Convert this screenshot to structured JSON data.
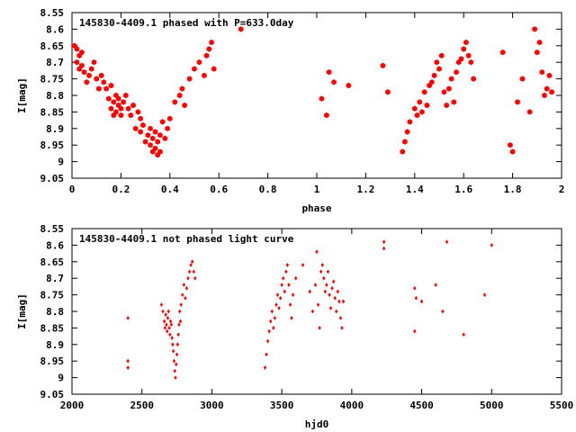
{
  "chart_data": [
    {
      "type": "scatter",
      "title": "145830-4409.1 phased with P=633.0day",
      "xlabel": "phase",
      "ylabel": "I[mag]",
      "xlim": [
        0,
        2
      ],
      "ylim": [
        9.05,
        8.55
      ],
      "y_inverted": true,
      "xticks": [
        "0",
        "0.2",
        "0.4",
        "0.6",
        "0.8",
        "1",
        "1.2",
        "1.4",
        "1.6",
        "1.8",
        "2"
      ],
      "yticks": [
        "8.55",
        "8.6",
        "8.65",
        "8.7",
        "8.75",
        "8.8",
        "8.85",
        "8.9",
        "8.95",
        "9",
        "9.05"
      ],
      "grid": false,
      "marker_color": "#ff0000",
      "marker": "filled hexagon",
      "series": [
        {
          "x": [
            0.01,
            0.02,
            0.02,
            0.03,
            0.03,
            0.04,
            0.04,
            0.05,
            0.06,
            0.07,
            0.08,
            0.09,
            0.1,
            0.11,
            0.12,
            0.13,
            0.14,
            0.15,
            0.16,
            0.16,
            0.17,
            0.17,
            0.18,
            0.18,
            0.19,
            0.19,
            0.2,
            0.2,
            0.21,
            0.22,
            0.23,
            0.24,
            0.25,
            0.26,
            0.27,
            0.28,
            0.28,
            0.29,
            0.3,
            0.31,
            0.32,
            0.32,
            0.33,
            0.33,
            0.34,
            0.34,
            0.35,
            0.35,
            0.36,
            0.36,
            0.37,
            0.38,
            0.39,
            0.4,
            0.42,
            0.44,
            0.45,
            0.46,
            0.48,
            0.5,
            0.52,
            0.54,
            0.55,
            0.56,
            0.57,
            0.58,
            0.69,
            1.02,
            1.04,
            1.05,
            1.07,
            1.13,
            1.27,
            1.29,
            1.35,
            1.36,
            1.37,
            1.38,
            1.4,
            1.41,
            1.42,
            1.43,
            1.44,
            1.45,
            1.46,
            1.47,
            1.48,
            1.49,
            1.5,
            1.51,
            1.52,
            1.53,
            1.54,
            1.55,
            1.56,
            1.57,
            1.58,
            1.59,
            1.6,
            1.61,
            1.62,
            1.63,
            1.64,
            1.76,
            1.79,
            1.8,
            1.82,
            1.84,
            1.87,
            1.89,
            1.9,
            1.91,
            1.92,
            1.93,
            1.94,
            1.95,
            1.96
          ],
          "y": [
            8.65,
            8.7,
            8.66,
            8.68,
            8.72,
            8.67,
            8.71,
            8.73,
            8.76,
            8.74,
            8.72,
            8.7,
            8.75,
            8.78,
            8.74,
            8.76,
            8.78,
            8.81,
            8.84,
            8.77,
            8.82,
            8.86,
            8.8,
            8.85,
            8.83,
            8.81,
            8.86,
            8.84,
            8.82,
            8.8,
            8.84,
            8.86,
            8.83,
            8.9,
            8.85,
            8.87,
            8.91,
            8.89,
            8.94,
            8.92,
            8.95,
            8.9,
            8.97,
            8.93,
            8.96,
            8.91,
            8.98,
            8.94,
            8.97,
            8.92,
            8.88,
            8.93,
            8.9,
            8.87,
            8.82,
            8.8,
            8.78,
            8.83,
            8.75,
            8.72,
            8.7,
            8.74,
            8.68,
            8.66,
            8.64,
            8.72,
            8.6,
            8.81,
            8.86,
            8.73,
            8.76,
            8.77,
            8.71,
            8.79,
            8.97,
            8.94,
            8.91,
            8.88,
            8.84,
            8.86,
            8.82,
            8.85,
            8.79,
            8.83,
            8.77,
            8.76,
            8.74,
            8.7,
            8.72,
            8.68,
            8.79,
            8.83,
            8.78,
            8.75,
            8.82,
            8.73,
            8.7,
            8.69,
            8.66,
            8.64,
            8.68,
            8.7,
            8.75,
            8.67,
            8.95,
            8.97,
            8.82,
            8.75,
            8.85,
            8.6,
            8.67,
            8.64,
            8.73,
            8.8,
            8.78,
            8.74,
            8.79
          ],
          "note": "data point estimates"
        }
      ]
    },
    {
      "type": "scatter",
      "title": "145830-4409.1 not phased light curve",
      "xlabel": "hjd0",
      "ylabel": "I[mag]",
      "xlim": [
        2000,
        5500
      ],
      "ylim": [
        9.05,
        8.55
      ],
      "y_inverted": true,
      "xticks": [
        "2000",
        "2500",
        "3000",
        "3500",
        "4000",
        "4500",
        "5000",
        "5500"
      ],
      "yticks": [
        "8.55",
        "8.6",
        "8.65",
        "8.7",
        "8.75",
        "8.8",
        "8.85",
        "8.9",
        "8.95",
        "9",
        "9.05"
      ],
      "grid": false,
      "marker_color": "#ff0000",
      "marker": "small filled diamond",
      "series": [
        {
          "x": [
            2400,
            2400,
            2400,
            2640,
            2650,
            2660,
            2665,
            2670,
            2675,
            2680,
            2685,
            2690,
            2695,
            2700,
            2705,
            2710,
            2715,
            2720,
            2725,
            2730,
            2735,
            2740,
            2745,
            2750,
            2755,
            2760,
            2765,
            2770,
            2775,
            2780,
            2790,
            2800,
            2810,
            2820,
            2830,
            2840,
            2850,
            2860,
            2870,
            2880,
            3380,
            3390,
            3400,
            3410,
            3420,
            3430,
            3440,
            3450,
            3460,
            3470,
            3480,
            3490,
            3500,
            3510,
            3520,
            3530,
            3540,
            3550,
            3560,
            3570,
            3580,
            3600,
            3650,
            3700,
            3720,
            3740,
            3750,
            3760,
            3770,
            3780,
            3790,
            3800,
            3810,
            3820,
            3830,
            3840,
            3850,
            3860,
            3870,
            3880,
            3890,
            3900,
            3910,
            3920,
            3930,
            3940,
            4230,
            4230,
            4450,
            4450,
            4460,
            4500,
            4600,
            4650,
            4680,
            4800,
            4950,
            5000
          ],
          "y": [
            8.82,
            8.95,
            8.97,
            8.78,
            8.8,
            8.83,
            8.85,
            8.81,
            8.84,
            8.86,
            8.82,
            8.8,
            8.85,
            8.87,
            8.83,
            8.84,
            8.88,
            8.9,
            8.92,
            8.95,
            8.98,
            9.0,
            8.96,
            8.93,
            8.9,
            8.87,
            8.84,
            8.8,
            8.83,
            8.78,
            8.75,
            8.72,
            8.76,
            8.73,
            8.7,
            8.68,
            8.66,
            8.65,
            8.68,
            8.7,
            8.97,
            8.93,
            8.89,
            8.86,
            8.83,
            8.8,
            8.85,
            8.82,
            8.78,
            8.75,
            8.79,
            8.76,
            8.72,
            8.7,
            8.74,
            8.68,
            8.66,
            8.72,
            8.78,
            8.82,
            8.75,
            8.7,
            8.66,
            8.74,
            8.8,
            8.72,
            8.62,
            8.78,
            8.85,
            8.68,
            8.66,
            8.7,
            8.74,
            8.72,
            8.68,
            8.75,
            8.79,
            8.73,
            8.71,
            8.76,
            8.8,
            8.74,
            8.77,
            8.82,
            8.85,
            8.77,
            8.59,
            8.61,
            8.73,
            8.86,
            8.76,
            8.77,
            8.72,
            8.8,
            8.59,
            8.87,
            8.75,
            8.6
          ],
          "note": "data point estimates"
        }
      ]
    }
  ]
}
